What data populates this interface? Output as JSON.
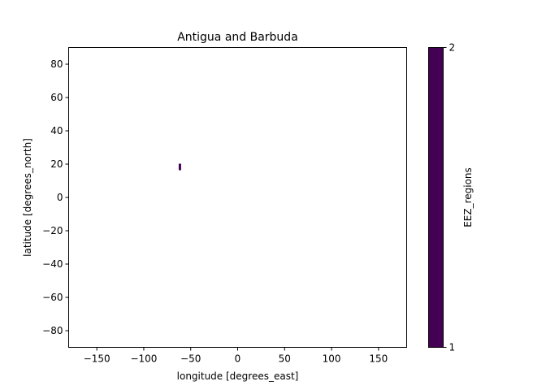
{
  "chart_data": {
    "type": "heatmap",
    "title": "Antigua and Barbuda",
    "xlabel": "longitude [degrees_east]",
    "ylabel": "latitude [degrees_north]",
    "xlim": [
      -180,
      180
    ],
    "ylim": [
      -90,
      90
    ],
    "x_ticks": [
      -150,
      -100,
      -50,
      0,
      50,
      100,
      150
    ],
    "x_tick_labels": [
      "−150",
      "−100",
      "−50",
      "0",
      "50",
      "100",
      "150"
    ],
    "y_ticks": [
      80,
      60,
      40,
      20,
      0,
      -20,
      -40,
      -60,
      -80
    ],
    "y_tick_labels": [
      "80",
      "60",
      "40",
      "20",
      "0",
      "−20",
      "−40",
      "−60",
      "−80"
    ],
    "grid": false,
    "region_cells": [
      {
        "lon": -61.5,
        "lat": 18.3,
        "value": 1
      }
    ],
    "colorbar": {
      "label": "EEZ_regions",
      "range": [
        1,
        2
      ],
      "ticks": [
        1,
        2
      ],
      "tick_labels": [
        "1",
        "2"
      ],
      "color": "#440154"
    }
  }
}
